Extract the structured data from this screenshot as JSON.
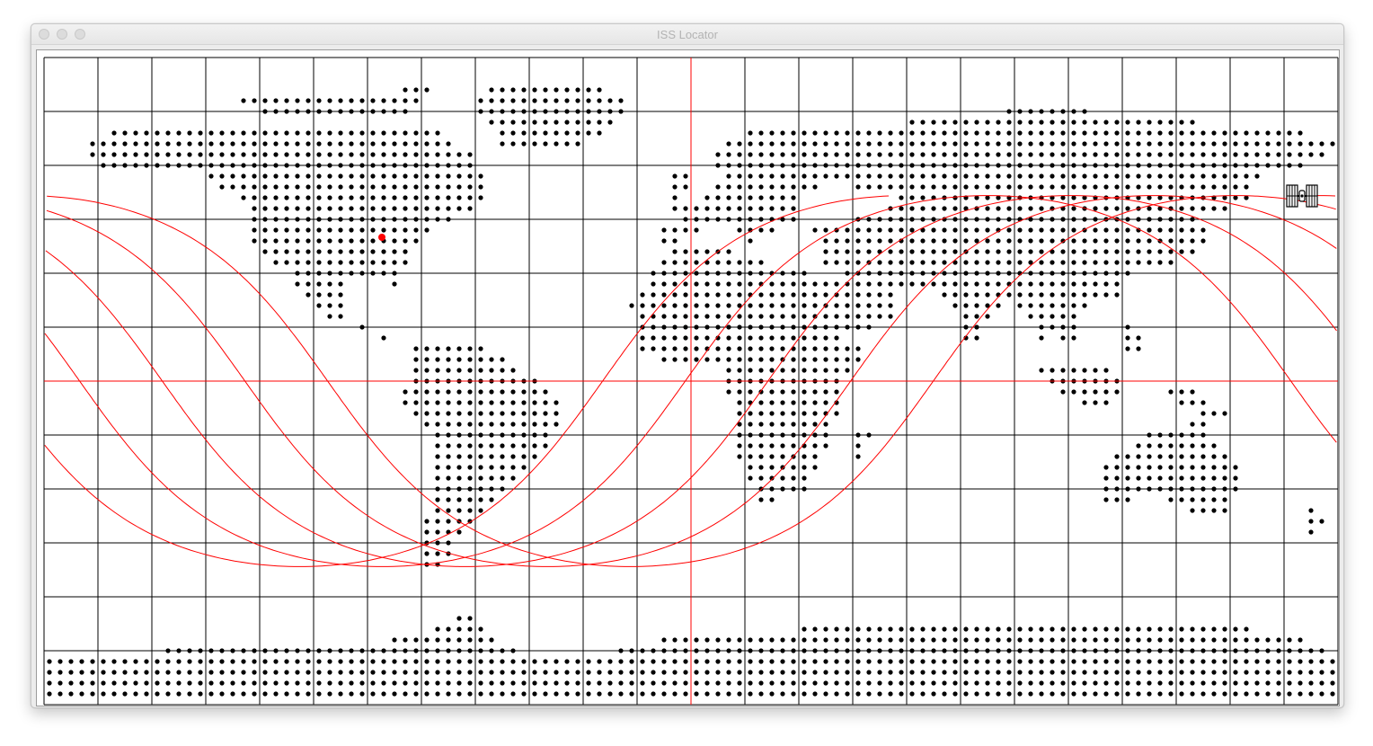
{
  "window": {
    "title": "ISS Locator"
  },
  "map": {
    "grid": {
      "lon_step_deg": 15,
      "lat_step_deg": 15,
      "color": "#000000"
    },
    "reference_line_color": "#ff0000",
    "land_dot_color": "#000000",
    "track_color": "#ff0000",
    "observer": {
      "lat": 40,
      "lon": -86,
      "color": "#ff0000"
    },
    "iss": {
      "lat": 51.5,
      "lon": 170,
      "icon": "satellite-icon"
    },
    "ground_track": {
      "inclination_deg": 51.6,
      "passes": 5,
      "lon_shift_per_orbit_deg": -23
    }
  }
}
